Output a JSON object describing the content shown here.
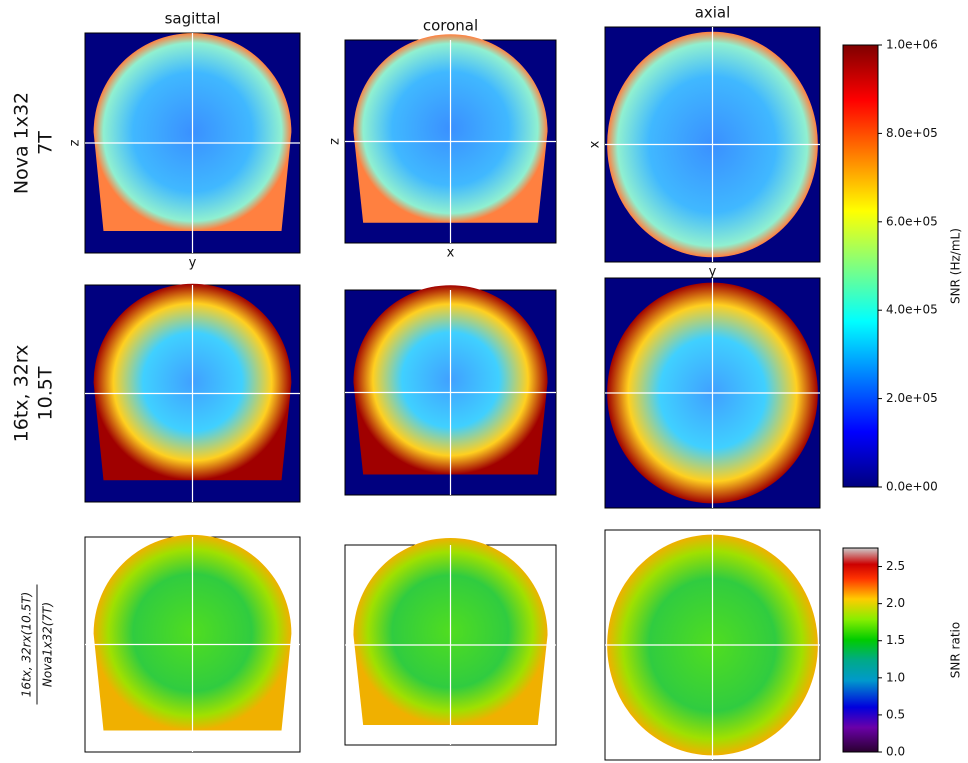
{
  "figure": {
    "columns": [
      "sagittal",
      "coronal",
      "axial"
    ],
    "rows": [
      {
        "lines": [
          "Nova 1x32",
          "7T"
        ]
      },
      {
        "lines": [
          "16tx, 32rx",
          "10.5T"
        ]
      },
      {
        "numerator": "16tx, 32rx(10.5T)",
        "denominator": "Nova1x32(7T)"
      }
    ],
    "axis_labels": [
      {
        "vertical": "z",
        "horizontal": "y"
      },
      {
        "vertical": "z",
        "horizontal": "x"
      },
      {
        "vertical": "x",
        "horizontal": "y"
      }
    ],
    "colorbars": [
      {
        "label": "SNR (Hz/mL)",
        "lim": [
          0,
          1000000
        ],
        "ticks": [
          {
            "value": 0,
            "label": "0.0e+00"
          },
          {
            "value": 200000,
            "label": "2.0e+05"
          },
          {
            "value": 400000,
            "label": "4.0e+05"
          },
          {
            "value": 600000,
            "label": "6.0e+05"
          },
          {
            "value": 800000,
            "label": "8.0e+05"
          },
          {
            "value": 1000000,
            "label": "1.0e+06"
          }
        ]
      },
      {
        "label": "SNR ratio",
        "lim": [
          0,
          2.75
        ],
        "ticks": [
          {
            "value": 0,
            "label": "0.0"
          },
          0.5,
          {
            "value": 1,
            "label": "1.0"
          },
          1.5,
          {
            "value": 2,
            "label": "2.0"
          },
          2.5
        ]
      }
    ]
  }
}
